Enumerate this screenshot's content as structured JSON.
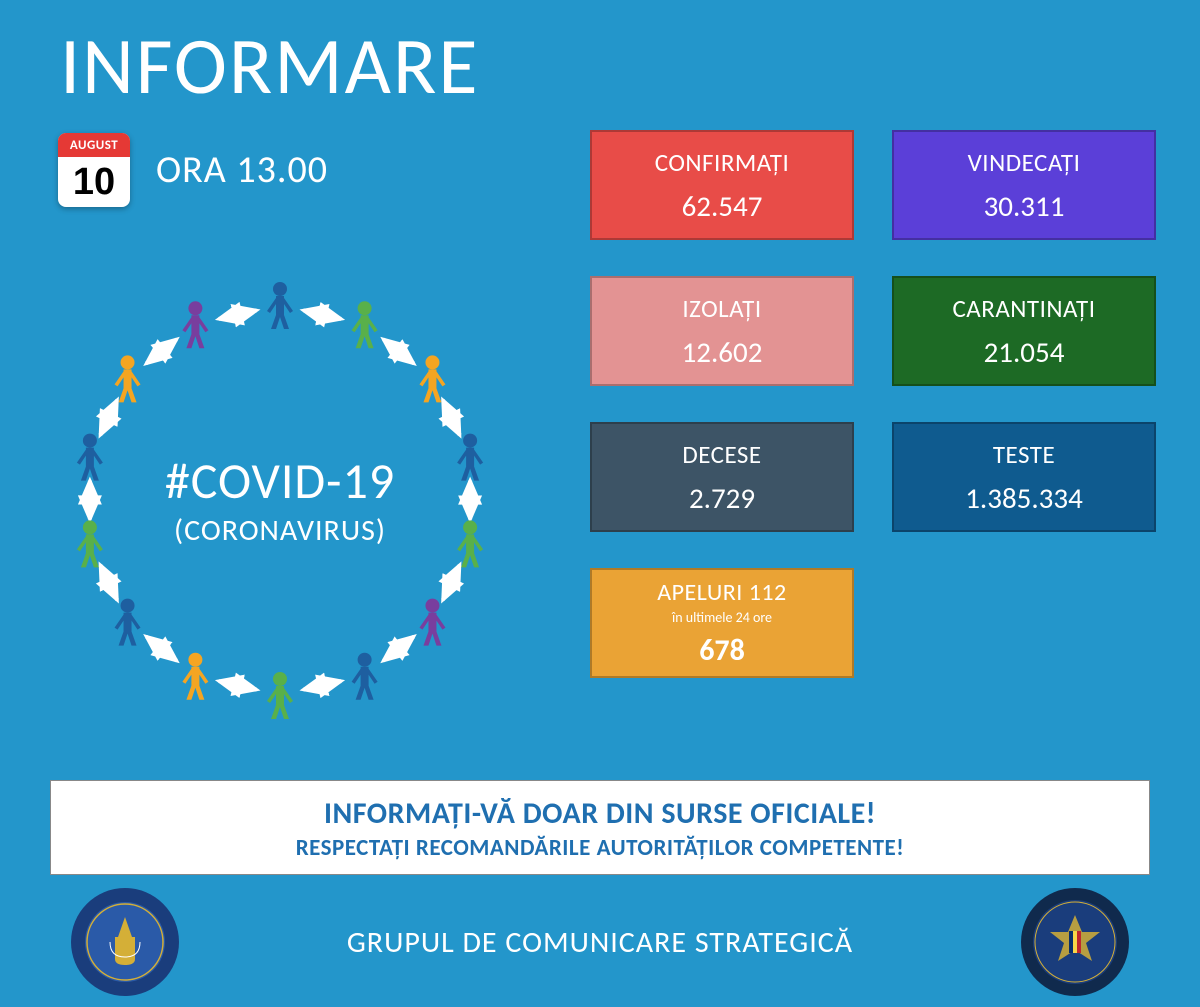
{
  "header": {
    "title": "INFORMARE",
    "calendar_month": "AUGUST",
    "calendar_day": "10",
    "time_label": "ORA 13.00"
  },
  "covid_circle": {
    "hashtag": "#COVID-19",
    "subtitle": "(CORONAVIRUS)",
    "person_colors": [
      "#1e5fa0",
      "#59b04a",
      "#f4a522",
      "#1e5fa0",
      "#59b04a",
      "#793e9e",
      "#1e5fa0",
      "#59b04a",
      "#f4a522",
      "#1e5fa0",
      "#59b04a",
      "#1e5fa0",
      "#f4a522",
      "#793e9e"
    ],
    "arrow_color": "#ffffff"
  },
  "stats": [
    {
      "label": "CONFIRMAȚI",
      "value": "62.547",
      "bg": "#e84c48",
      "col": 1,
      "row": 1
    },
    {
      "label": "VINDECAȚI",
      "value": "30.311",
      "bg": "#5b3fd8",
      "col": 2,
      "row": 1
    },
    {
      "label": "IZOLAȚI",
      "value": "12.602",
      "bg": "#e39393",
      "col": 1,
      "row": 2
    },
    {
      "label": "CARANTINAȚI",
      "value": "21.054",
      "bg": "#1d6a25",
      "col": 2,
      "row": 2
    },
    {
      "label": "DECESE",
      "value": "2.729",
      "bg": "#3d5466",
      "col": 1,
      "row": 3
    },
    {
      "label": "TESTE",
      "value": "1.385.334",
      "bg": "#0f5b8f",
      "col": 2,
      "row": 3
    }
  ],
  "calls_box": {
    "label": "APELURI 112",
    "sublabel": "în ultimele 24 ore",
    "value": "678",
    "bg": "#eaa335",
    "col": 1,
    "row": 4
  },
  "banner": {
    "line1": "INFORMAȚI-VĂ DOAR DIN SURSE OFICIALE!",
    "line2": "RESPECTAȚI RECOMANDĂRILE AUTORITĂȚILOR COMPETENTE!"
  },
  "footer": {
    "text": "GRUPUL DE COMUNICARE STRATEGICĂ",
    "seal_left": {
      "ring": "#1a3d7c",
      "inner": "#2a5aa8",
      "accent": "#d4af37"
    },
    "seal_right": {
      "ring": "#102a4d",
      "inner": "#1a3d7c",
      "accent": "#d4af37"
    }
  }
}
